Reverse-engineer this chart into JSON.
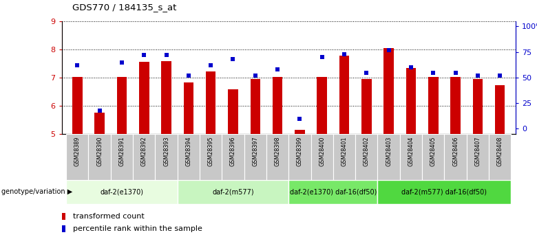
{
  "title": "GDS770 / 184135_s_at",
  "samples": [
    "GSM28389",
    "GSM28390",
    "GSM28391",
    "GSM28392",
    "GSM28393",
    "GSM28394",
    "GSM28395",
    "GSM28396",
    "GSM28397",
    "GSM28398",
    "GSM28399",
    "GSM28400",
    "GSM28401",
    "GSM28402",
    "GSM28403",
    "GSM28404",
    "GSM28405",
    "GSM28406",
    "GSM28407",
    "GSM28408"
  ],
  "bar_values": [
    7.02,
    5.75,
    7.02,
    7.55,
    7.58,
    6.82,
    7.22,
    6.58,
    6.95,
    7.02,
    5.15,
    7.02,
    7.78,
    6.95,
    8.05,
    7.35,
    7.02,
    7.02,
    6.95,
    6.72
  ],
  "dot_values": [
    62,
    18,
    65,
    72,
    72,
    52,
    62,
    68,
    52,
    58,
    10,
    70,
    73,
    55,
    77,
    60,
    55,
    55,
    52,
    52
  ],
  "groups": [
    {
      "label": "daf-2(e1370)",
      "start": 0,
      "end": 4,
      "color": "#e8fce0"
    },
    {
      "label": "daf-2(m577)",
      "start": 5,
      "end": 9,
      "color": "#c8f5c0"
    },
    {
      "label": "daf-2(e1370) daf-16(df50)",
      "start": 10,
      "end": 13,
      "color": "#78e868"
    },
    {
      "label": "daf-2(m577) daf-16(df50)",
      "start": 14,
      "end": 19,
      "color": "#50d840"
    }
  ],
  "ylim": [
    5,
    9
  ],
  "yticks": [
    5,
    6,
    7,
    8,
    9
  ],
  "y2ticks": [
    0,
    25,
    50,
    75,
    100
  ],
  "y2ticklabels": [
    "0",
    "25",
    "50",
    "75",
    "100%"
  ],
  "bar_color": "#cc0000",
  "dot_color": "#0000cc",
  "background_color": "#ffffff",
  "plot_bg": "#ffffff",
  "bar_width": 0.45,
  "legend_items": [
    "transformed count",
    "percentile rank within the sample"
  ]
}
